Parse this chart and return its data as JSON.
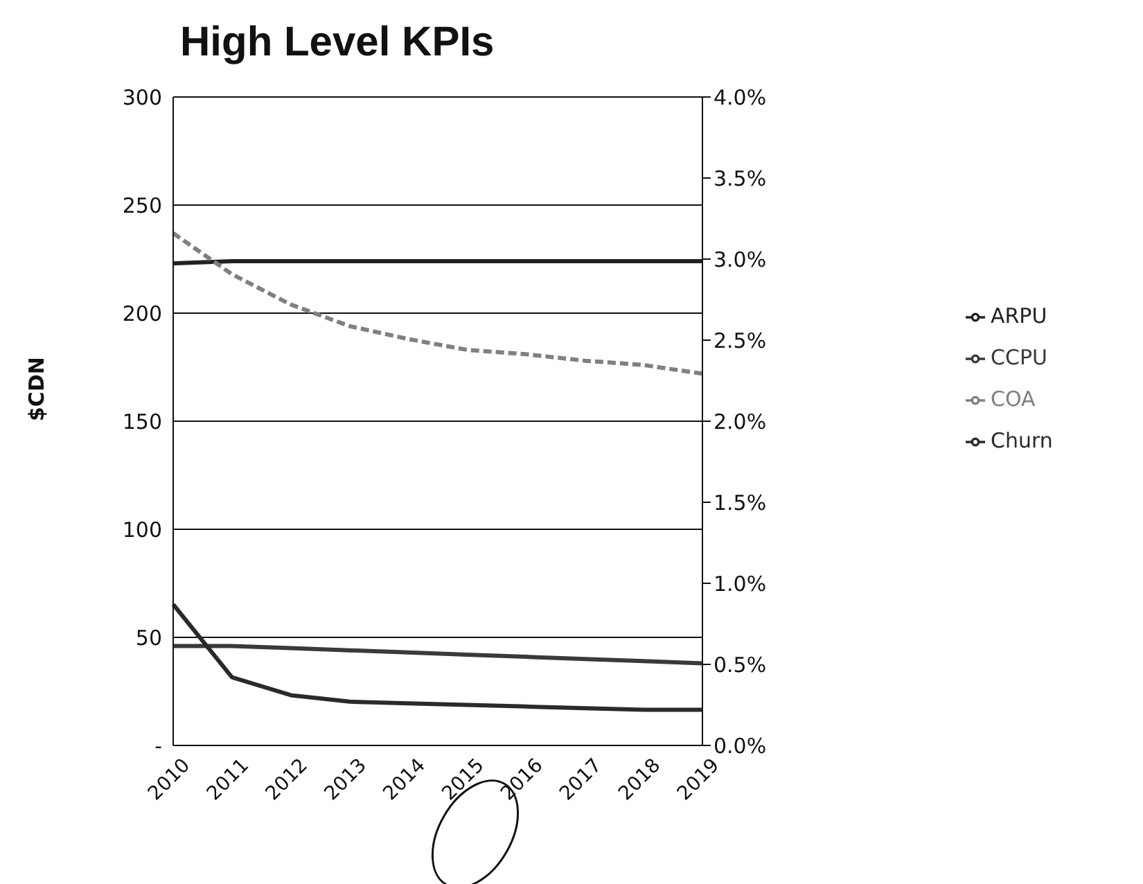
{
  "chart_data": {
    "type": "line",
    "title": "High Level KPIs",
    "ylabel": "$CDN",
    "categories": [
      "2010",
      "2011",
      "2012",
      "2013",
      "2014",
      "2015",
      "2016",
      "2017",
      "2018",
      "2019"
    ],
    "series": [
      {
        "name": "ARPU",
        "color": "#222222",
        "values": [
          223,
          224,
          224,
          224,
          224,
          224,
          224,
          224,
          224,
          224
        ],
        "line_style": "solid"
      },
      {
        "name": "CCPU",
        "color": "#3a3a3a",
        "values": [
          46,
          46,
          45,
          44,
          43,
          42,
          41,
          40,
          39,
          38
        ],
        "line_style": "solid"
      },
      {
        "name": "COA",
        "color": "#808080",
        "values": [
          237,
          218,
          204,
          194,
          188,
          183,
          181,
          178,
          176,
          172
        ],
        "line_style": "dashed"
      },
      {
        "name": "Churn",
        "color": "#2a2a2a",
        "axis": "y2",
        "values": [
          0.87,
          0.42,
          0.31,
          0.27,
          0.26,
          0.25,
          0.24,
          0.23,
          0.22,
          0.22
        ],
        "line_style": "solid"
      }
    ],
    "ylim": [
      0,
      300
    ],
    "yticks": [
      {
        "value": 0,
        "label": "-"
      },
      50,
      100,
      150,
      200,
      250,
      300
    ],
    "y2lim": [
      0,
      4
    ],
    "y2ticks": [
      {
        "value": 0,
        "label": "0.0%"
      },
      {
        "value": 0.5,
        "label": "0.5%"
      },
      {
        "value": 1,
        "label": "1.0%"
      },
      {
        "value": 1.5,
        "label": "1.5%"
      },
      {
        "value": 2,
        "label": "2.0%"
      },
      {
        "value": 2.5,
        "label": "2.5%"
      },
      {
        "value": 3,
        "label": "3.0%"
      },
      {
        "value": 3.5,
        "label": "3.5%"
      },
      {
        "value": 4,
        "label": "4.0%"
      }
    ],
    "grid": "y",
    "legend": "right",
    "marker": "none"
  }
}
